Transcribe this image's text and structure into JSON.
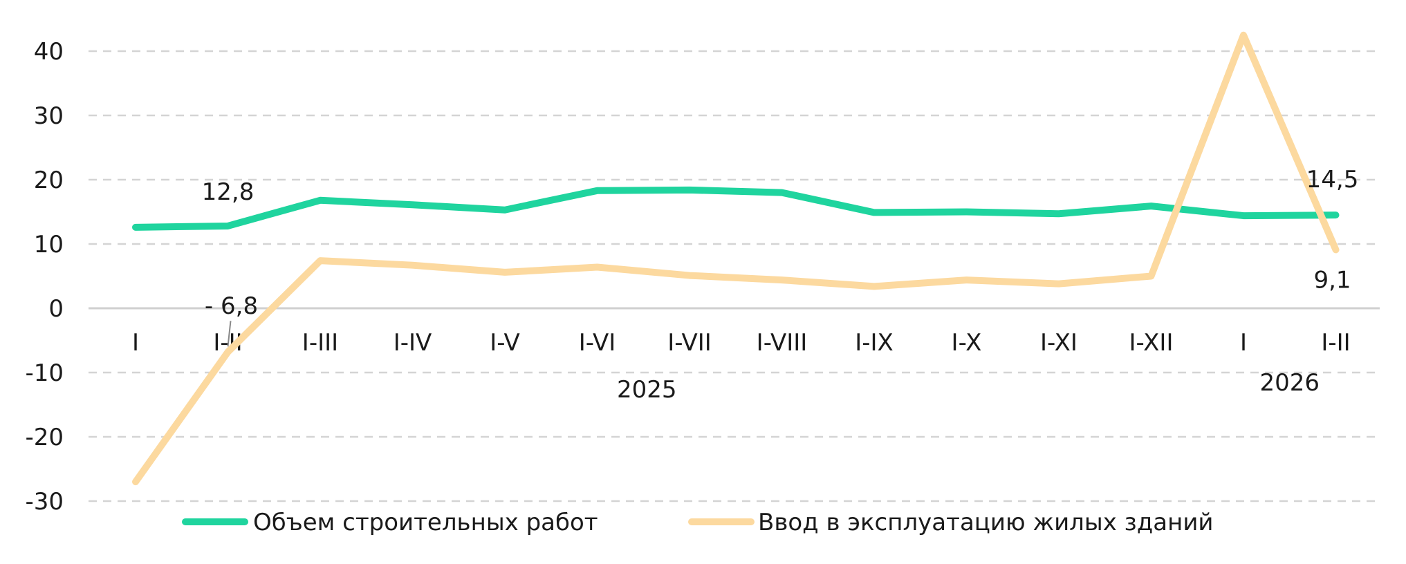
{
  "chart_data": {
    "type": "line",
    "categories": [
      "I",
      "I-II",
      "I-III",
      "I-IV",
      "I-V",
      "I-VI",
      "I-VII",
      "I-VIII",
      "I-IX",
      "I-X",
      "I-XI",
      "I-XII",
      "I",
      "I-II"
    ],
    "category_groups": [
      {
        "label": "2025",
        "start": 0,
        "end": 11
      },
      {
        "label": "2026",
        "start": 12,
        "end": 13
      }
    ],
    "series": [
      {
        "name": "Объем строительных работ",
        "color": "#1fd49e",
        "values": [
          12.6,
          12.8,
          16.8,
          16.1,
          15.3,
          18.3,
          18.4,
          18.0,
          14.9,
          15.0,
          14.7,
          15.9,
          14.4,
          14.5
        ]
      },
      {
        "name": "Ввод в эксплуатацию жилых зданий",
        "color": "#fcd99f",
        "values": [
          -27.0,
          -6.8,
          7.4,
          6.7,
          5.6,
          6.4,
          5.1,
          4.4,
          3.4,
          4.4,
          3.8,
          5.0,
          42.5,
          9.1
        ]
      }
    ],
    "annotations": [
      {
        "series": 0,
        "index": 1,
        "text": "12,8"
      },
      {
        "series": 1,
        "index": 1,
        "text": "- 6,8"
      },
      {
        "series": 0,
        "index": 13,
        "text": "14,5"
      },
      {
        "series": 1,
        "index": 13,
        "text": "9,1"
      }
    ],
    "y_ticks": [
      "40",
      "30",
      "20",
      "10",
      "0",
      "-10",
      "-20",
      "-30"
    ],
    "ylim": [
      -30,
      40
    ],
    "grid": true,
    "legend_position": "bottom"
  }
}
